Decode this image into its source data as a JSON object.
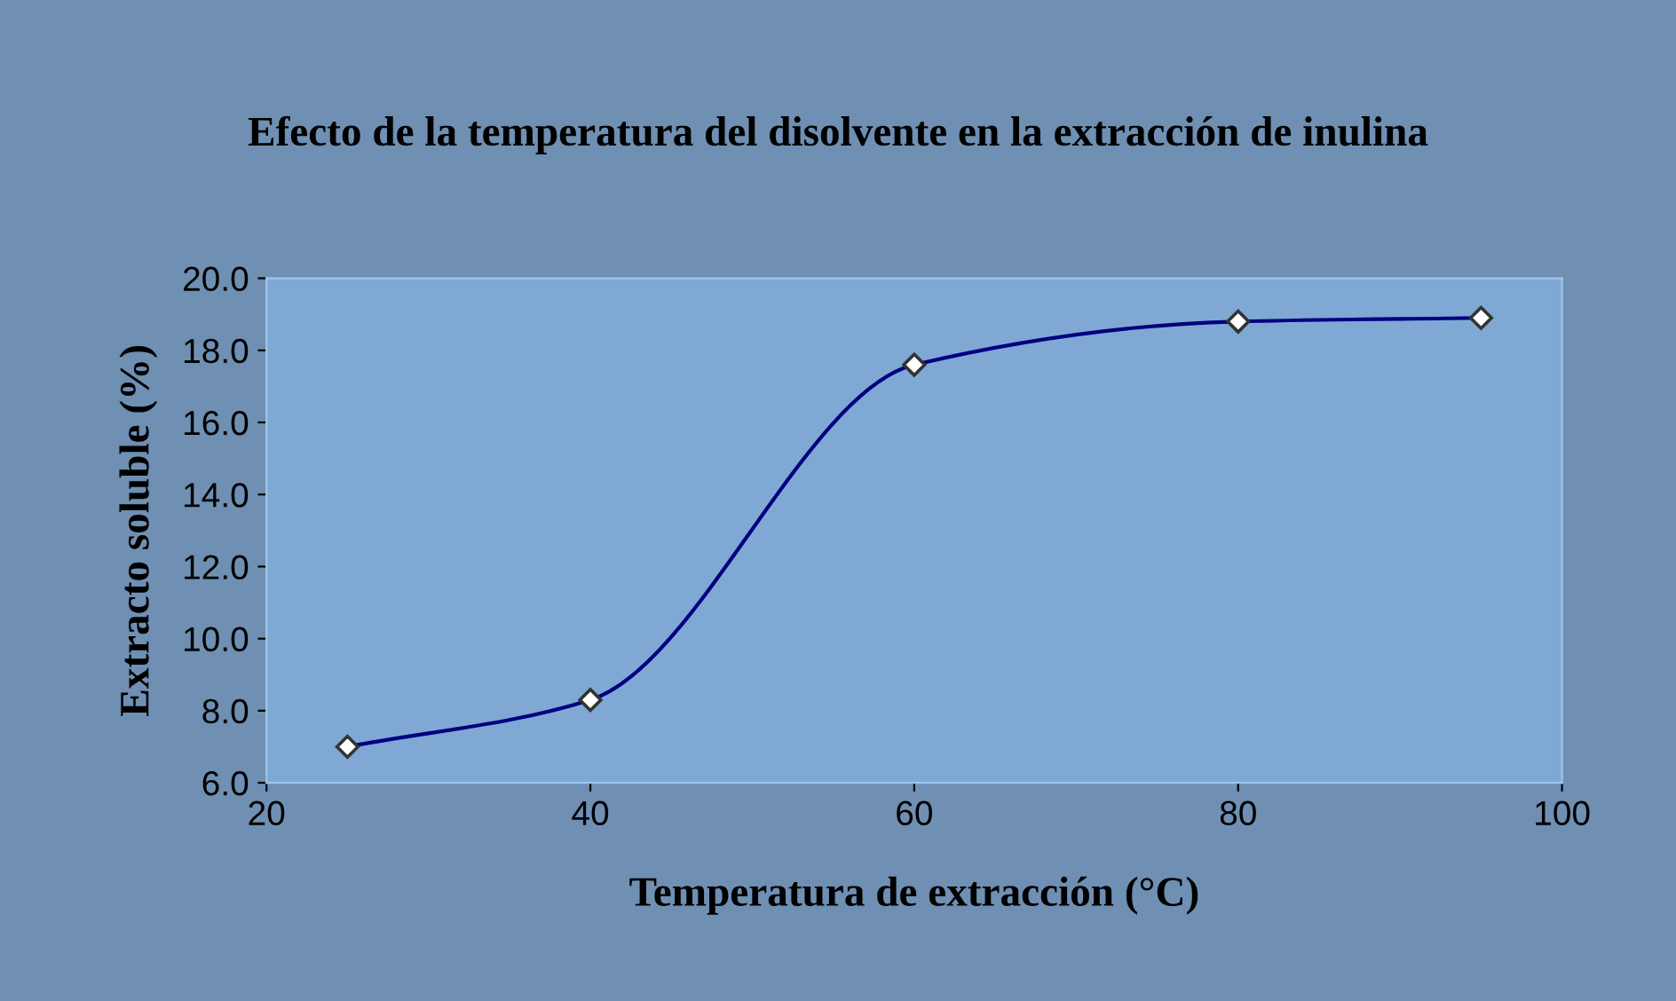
{
  "chart_data": {
    "type": "line",
    "title": "Efecto de la temperatura del disolvente en la extracción de inulina",
    "xlabel": "Temperatura de extracción (°C)",
    "ylabel": "Extracto soluble (%)",
    "x": [
      25,
      40,
      60,
      80,
      95
    ],
    "series": [
      {
        "color": "#000080",
        "values": [
          7.0,
          8.3,
          17.6,
          18.8,
          18.9
        ]
      }
    ],
    "xlim": [
      20,
      100
    ],
    "xticks": [
      20,
      40,
      60,
      80,
      100
    ],
    "ylim": [
      6.0,
      20.0
    ],
    "yticks": [
      {
        "value": 6,
        "label": "6.0"
      },
      {
        "value": 8,
        "label": "8.0"
      },
      {
        "value": 10,
        "label": "10.0"
      },
      {
        "value": 12,
        "label": "12.0"
      },
      {
        "value": 14,
        "label": "14.0"
      },
      {
        "value": 16,
        "label": "16.0"
      },
      {
        "value": 18,
        "label": "18.0"
      },
      {
        "value": 20,
        "label": "20.0"
      }
    ],
    "marker": "diamond",
    "line_style": "solid",
    "grid": false,
    "legend": false
  }
}
